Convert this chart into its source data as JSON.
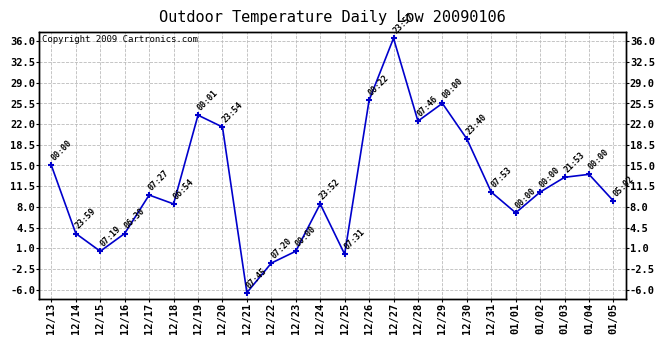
{
  "title": "Outdoor Temperature Daily Low 20090106",
  "copyright": "Copyright 2009 Cartronics.com",
  "x_labels": [
    "12/13",
    "12/14",
    "12/15",
    "12/16",
    "12/17",
    "12/18",
    "12/19",
    "12/20",
    "12/21",
    "12/22",
    "12/23",
    "12/24",
    "12/25",
    "12/26",
    "12/27",
    "12/28",
    "12/29",
    "12/30",
    "12/31",
    "01/01",
    "01/02",
    "01/03",
    "01/04",
    "01/05"
  ],
  "y_values": [
    15.0,
    3.5,
    0.5,
    3.5,
    10.0,
    8.5,
    23.5,
    21.5,
    -6.5,
    -1.5,
    0.5,
    8.5,
    0.0,
    26.0,
    36.5,
    22.5,
    25.5,
    19.5,
    10.5,
    7.0,
    10.5,
    13.0,
    13.5,
    9.0
  ],
  "point_labels": [
    "00:00",
    "23:59",
    "07:19",
    "06:30",
    "07:27",
    "06:54",
    "00:01",
    "23:54",
    "07:45",
    "07:20",
    "00:00",
    "23:52",
    "07:31",
    "00:22",
    "23:57",
    "07:46",
    "00:00",
    "23:40",
    "07:53",
    "00:00",
    "00:00",
    "21:53",
    "00:00",
    "05:02"
  ],
  "line_color": "#0000cc",
  "marker_color": "#0000cc",
  "background_color": "#ffffff",
  "grid_color": "#bbbbbb",
  "ylim_min": -7.5,
  "ylim_max": 37.5,
  "yticks": [
    -6.0,
    -2.5,
    1.0,
    4.5,
    8.0,
    11.5,
    15.0,
    18.5,
    22.0,
    25.5,
    29.0,
    32.5,
    36.0
  ],
  "title_fontsize": 11,
  "tick_fontsize": 7.5,
  "point_label_fontsize": 6,
  "copyright_fontsize": 6.5
}
